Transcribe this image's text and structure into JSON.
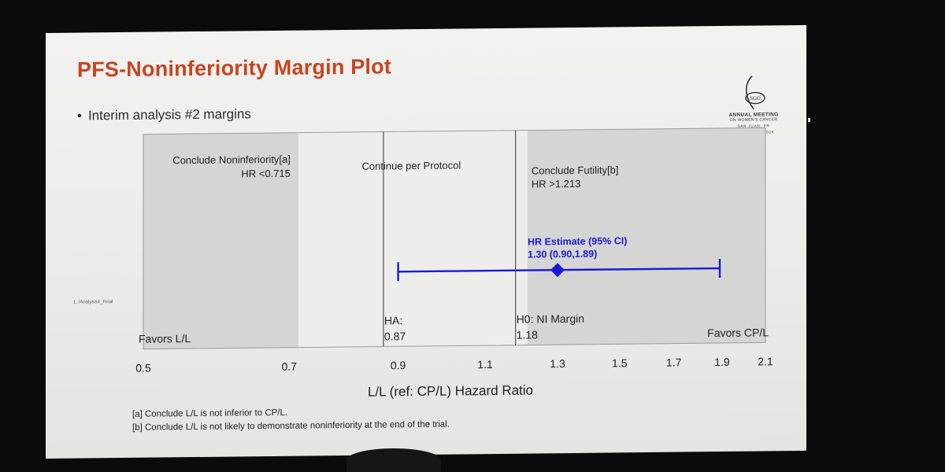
{
  "slide": {
    "title": "PFS-Noninferiority Margin Plot",
    "bullet": "Interim analysis #2 margins",
    "file_label": "1. /Analysis4_Final",
    "footnotes": [
      "[a] Conclude L/L is not inferior to CP/L.",
      "[b] Conclude L/L is not likely to demonstrate noninferiority at the end of the trial."
    ]
  },
  "logo": {
    "icon_text": "SGO",
    "line1": "ANNUAL MEETING",
    "line2": "ON WOMEN'S CANCER",
    "line3": "SAN JUAN, PR",
    "line4": "APRIL 10-13, 2026"
  },
  "chart_data": {
    "type": "forest",
    "title": "PFS-Noninferiority Margin Plot",
    "xlabel": "L/L (ref: CP/L) Hazard Ratio",
    "xlim": [
      0.5,
      2.1
    ],
    "scale": "log",
    "ticks": [
      0.5,
      0.7,
      0.9,
      1.1,
      1.3,
      1.5,
      1.7,
      1.9,
      2.1
    ],
    "tick_labels": [
      "0.5",
      "0.7",
      "0.9",
      "1.1",
      "1.3",
      "1.5",
      "1.7",
      "1.9",
      "2.1"
    ],
    "regions": [
      {
        "name": "Conclude Noninferiority[a]",
        "label": "Conclude Noninferiority[a]",
        "sublabel": "HR <0.715",
        "from": 0.5,
        "to": 0.715,
        "color": "#d5d5d3"
      },
      {
        "name": "Continue per Protocol",
        "label": "Continue per Protocol",
        "sublabel": "",
        "from": 0.715,
        "to": 1.213,
        "color": "#ededec"
      },
      {
        "name": "Conclude Futility[b]",
        "label": "Conclude Futility[b]",
        "sublabel": "HR >1.213",
        "from": 1.213,
        "to": 2.1,
        "color": "#d5d5d3"
      }
    ],
    "reference_lines": [
      {
        "name": "HA",
        "label": "HA:",
        "value_label": "0.87",
        "x": 0.87
      },
      {
        "name": "H0",
        "label": "H0: NI Margin",
        "value_label": "1.18",
        "x": 1.18
      }
    ],
    "estimate": {
      "label": "HR Estimate (95% CI)",
      "value_label": "1.30 (0.90,1.89)",
      "hr": 1.3,
      "ci_low": 0.9,
      "ci_high": 1.89,
      "color": "#1a1ad6"
    },
    "favors_left": "Favors L/L",
    "favors_right": "Favors CP/L"
  }
}
